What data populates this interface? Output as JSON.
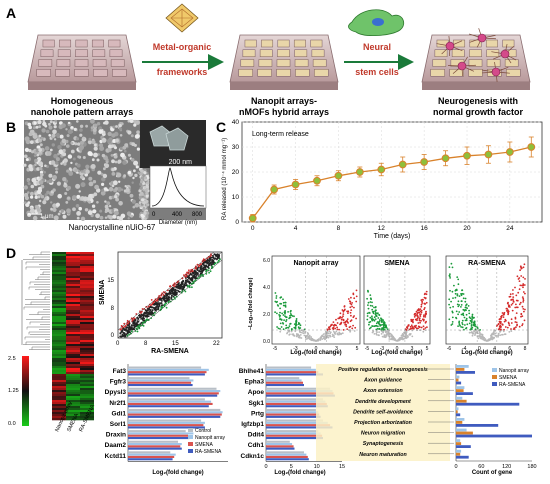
{
  "panelA": {
    "letter": "A",
    "label1": [
      "Homogeneous",
      "nanohole pattern arrays"
    ],
    "arrow1": [
      "Metal-organic",
      "frameworks"
    ],
    "label2": [
      "Nanopit arrays-",
      "nMOFs hybrid arrays"
    ],
    "arrow2": [
      "Neural",
      "stem cells"
    ],
    "label3": [
      "Neurogenesis with",
      "normal growth factor"
    ]
  },
  "panelB": {
    "letter": "B",
    "scale_main": "1 μm",
    "scale_inset": "200 nm",
    "hist_xlabel": "Diameter (nm)",
    "hist_ticks": [
      "0",
      "400",
      "800"
    ],
    "caption": "Nanocrystalline nUiO-67"
  },
  "panelC": {
    "letter": "C",
    "legend": "Long-term release",
    "ylabel": "RA released (10⁻⁴ mmol mg⁻¹)",
    "xlabel": "Time (days)"
  },
  "chart_data": {
    "type": "scatter",
    "title": "",
    "xlabel": "Time (days)",
    "ylabel": "RA released (10⁻⁴ mmol mg⁻¹)",
    "xlim": [
      -1,
      27
    ],
    "ylim": [
      0,
      40
    ],
    "xticks": [
      0,
      4,
      8,
      12,
      16,
      20,
      24
    ],
    "yticks": [
      0,
      10,
      20,
      30,
      40
    ],
    "x": [
      0,
      2,
      4,
      6,
      8,
      10,
      12,
      14,
      16,
      18,
      20,
      22,
      24,
      26
    ],
    "y": [
      1.5,
      13,
      15,
      16.5,
      18.5,
      20,
      21,
      23,
      24,
      25.5,
      26.5,
      27,
      28,
      30
    ],
    "err": [
      1.5,
      1.8,
      2,
      2,
      2,
      2,
      2.5,
      3,
      3,
      3,
      3.5,
      3.5,
      4,
      4
    ],
    "grid": true
  },
  "panelD": {
    "letter": "D",
    "heatmap_cols": [
      "Nanopit array",
      "SMENA",
      "RA-SMENA"
    ],
    "scale_ticks": [
      "2.5",
      "1.25",
      "0.0"
    ],
    "scatter": {
      "xlabel": "RA-SMENA",
      "ylabel": "SMENA",
      "ticks": [
        "0",
        "8",
        "15",
        "22"
      ],
      "yticks": [
        "15",
        "8",
        "0"
      ]
    },
    "volcano": {
      "titles": [
        "Nanopit array",
        "SMENA",
        "RA-SMENA"
      ],
      "xlabel": "Log₂(fold change)",
      "ylabel": "–Log₁₀(fold change)",
      "yticks": [
        "6.0",
        "4.0",
        "2.0",
        "0.0"
      ],
      "xticks": [
        [
          "-5",
          "-3",
          "0",
          "3",
          "5"
        ],
        [
          "-5",
          "-3",
          "0",
          "3",
          "5"
        ],
        [
          "-6",
          "-4",
          "0",
          "4",
          "6",
          "8"
        ]
      ]
    },
    "bars_left": {
      "genes": [
        "Fat3",
        "Fgfr3",
        "Dpysl3",
        "Nr2f1",
        "Gdi1",
        "Sorl1",
        "Draxin",
        "Daam2",
        "Kctd11"
      ],
      "legend": [
        "Control",
        "Nanopit array",
        "SMENA",
        "RA-SMENA"
      ],
      "xlabel": "Log₂(fold change)",
      "values": [
        [
          9.5,
          10.5,
          10.2,
          10.0
        ],
        [
          8.0,
          8.5,
          8.2,
          8.4
        ],
        [
          11.5,
          12.0,
          11.8,
          11.6
        ],
        [
          10.0,
          10.8,
          11.0,
          10.5
        ],
        [
          12.0,
          12.3,
          12.2,
          12.0
        ],
        [
          9.5,
          10.0,
          9.8,
          10.0
        ],
        [
          7.5,
          8.5,
          7.8,
          8.0
        ],
        [
          6.5,
          7.0,
          6.8,
          7.0
        ],
        [
          5.5,
          6.2,
          6.0,
          5.8
        ]
      ]
    },
    "bars_right": {
      "genes": [
        "Bhlhe41",
        "Epha3",
        "Apoe",
        "Sgk1",
        "Prtg",
        "Igfzbp1",
        "Ddit4",
        "Cdh1",
        "Cdkn1c"
      ],
      "xlabel": "Log₂(fold change)",
      "xticks": [
        "0",
        "5",
        "10",
        "15"
      ],
      "values": [
        [
          9.5,
          10.5,
          11.0,
          12.0
        ],
        [
          7.0,
          7.5,
          7.8,
          8.0
        ],
        [
          13.5,
          14.0,
          14.2,
          14.5
        ],
        [
          12.0,
          12.5,
          12.8,
          13.0
        ],
        [
          10.5,
          11.0,
          11.2,
          11.5
        ],
        [
          12.0,
          13.0,
          13.5,
          14.0
        ],
        [
          11.0,
          11.5,
          11.8,
          12.0
        ],
        [
          5.0,
          5.5,
          5.8,
          6.0
        ],
        [
          8.0,
          8.5,
          8.8,
          9.0
        ]
      ]
    },
    "go_terms": [
      "Positive regulation of neurogenesis",
      "Axon guidance",
      "Axon extension",
      "Dendrite development",
      "Dendrite self-avoidance",
      "Projection arborization",
      "Neuron migration",
      "Synaptogenesis",
      "Neuron maturation"
    ],
    "go_chart": {
      "xlabel": "Count of gene",
      "xticks": [
        "0",
        "60",
        "120",
        "180"
      ],
      "legend": [
        "Nanopit array",
        "SMENA",
        "RA-SMENA"
      ],
      "values": [
        [
          30,
          20,
          45
        ],
        [
          8,
          6,
          12
        ],
        [
          20,
          18,
          40
        ],
        [
          15,
          25,
          150
        ],
        [
          6,
          4,
          10
        ],
        [
          20,
          15,
          100
        ],
        [
          25,
          40,
          180
        ],
        [
          10,
          12,
          35
        ],
        [
          12,
          10,
          30
        ]
      ]
    }
  },
  "colors": {
    "accent_red": "#c0392b",
    "line_orange": "#d9822b",
    "marker_green": "#8fbf3a",
    "bar_gray": "#b8bfc7",
    "bar_lightblue": "#9ec4e8",
    "bar_red": "#d9534f",
    "bar_blue": "#3f5bbf",
    "go_band": "#fbf1c6"
  }
}
